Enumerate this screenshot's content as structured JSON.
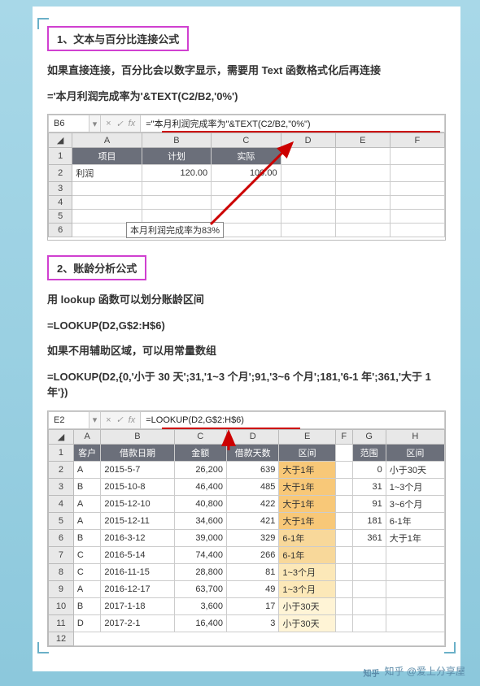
{
  "section1": {
    "heading": "1、文本与百分比连接公式",
    "desc": "如果直接连接，百分比会以数字显示，需要用 Text 函数格式化后再连接",
    "formula_text": "='本月利润完成率为'&TEXT(C2/B2,'0%')",
    "formula_bar": {
      "cell": "B6",
      "formula": "=\"本月利润完成率为\"&TEXT(C2/B2,\"0%\")"
    },
    "cols": [
      "A",
      "B",
      "C",
      "D",
      "E",
      "F"
    ],
    "header_row": [
      "项目",
      "计划",
      "实际"
    ],
    "data_row": [
      "利润",
      "120.00",
      "100.00"
    ],
    "tooltip": "本月利润完成率为83%",
    "tooltip_prefix": "本月利润完成",
    "colors": {
      "arrow": "#c00000",
      "heading_border": "#d040d0"
    }
  },
  "section2": {
    "heading": "2、账龄分析公式",
    "desc1": "用 lookup 函数可以划分账龄区间",
    "formula1": "=LOOKUP(D2,G$2:H$6)",
    "desc2": "如果不用辅助区域，可以用常量数组",
    "formula2": "=LOOKUP(D2,{0,'小于 30 天';31,'1~3 个月';91,'3~6 个月';181,'6-1 年';361,'大于 1 年'})",
    "formula_bar": {
      "cell": "E2",
      "formula": "=LOOKUP(D2,G$2:H$6)"
    },
    "cols": [
      "A",
      "B",
      "C",
      "D",
      "E",
      "F",
      "G",
      "H"
    ],
    "header_row": [
      "客户",
      "借款日期",
      "金额",
      "借款天数",
      "区间",
      "",
      "范围",
      "区间"
    ],
    "rows": [
      {
        "c": "A",
        "d": "2015-5-7",
        "a": "26,200",
        "n": "639",
        "r": "大于1年",
        "g": "0",
        "h": "小于30天"
      },
      {
        "c": "B",
        "d": "2015-10-8",
        "a": "46,400",
        "n": "485",
        "r": "大于1年",
        "g": "31",
        "h": "1~3个月"
      },
      {
        "c": "A",
        "d": "2015-12-10",
        "a": "40,800",
        "n": "422",
        "r": "大于1年",
        "g": "91",
        "h": "3~6个月"
      },
      {
        "c": "A",
        "d": "2015-12-11",
        "a": "34,600",
        "n": "421",
        "r": "大于1年",
        "g": "181",
        "h": "6-1年"
      },
      {
        "c": "B",
        "d": "2016-3-12",
        "a": "39,000",
        "n": "329",
        "r": "6-1年",
        "g": "361",
        "h": "大于1年"
      },
      {
        "c": "C",
        "d": "2016-5-14",
        "a": "74,400",
        "n": "266",
        "r": "6-1年",
        "g": "",
        "h": ""
      },
      {
        "c": "C",
        "d": "2016-11-15",
        "a": "28,800",
        "n": "81",
        "r": "1~3个月",
        "g": "",
        "h": ""
      },
      {
        "c": "A",
        "d": "2016-12-17",
        "a": "63,700",
        "n": "49",
        "r": "1~3个月",
        "g": "",
        "h": ""
      },
      {
        "c": "B",
        "d": "2017-1-18",
        "a": "3,600",
        "n": "17",
        "r": "小于30天",
        "g": "",
        "h": ""
      },
      {
        "c": "D",
        "d": "2017-2-1",
        "a": "16,400",
        "n": "3",
        "r": "小于30天",
        "g": "",
        "h": ""
      }
    ],
    "range_colors": {
      "大于1年": "#f8c878",
      "6-1年": "#f8d89a",
      "1~3个月": "#fce8b8",
      "小于30天": "#fff4d6"
    }
  },
  "watermark": "知乎 @爱上分享屋"
}
